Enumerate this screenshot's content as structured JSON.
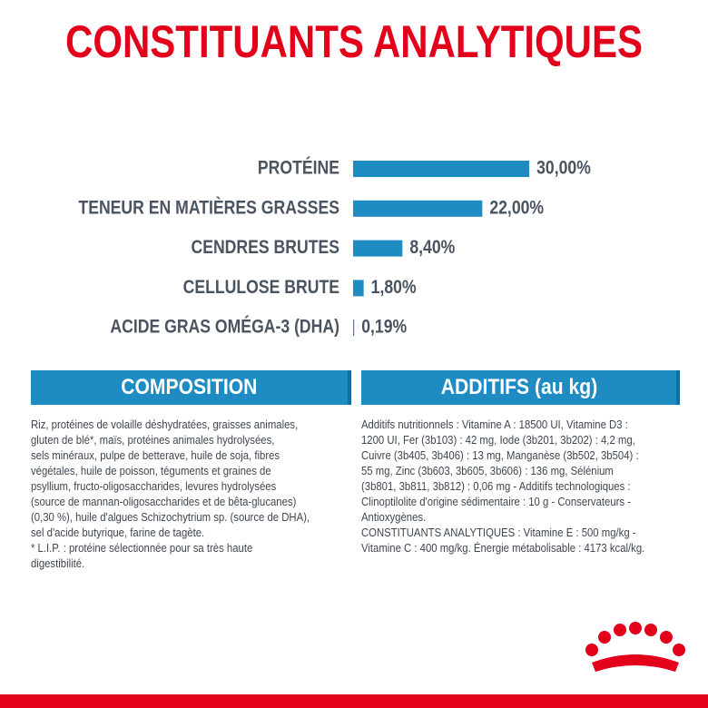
{
  "header": {
    "title": "CONSTITUANTS ANALYTIQUES"
  },
  "chart_data": {
    "type": "bar",
    "orientation": "horizontal",
    "categories": [
      "PROTÉINE",
      "TENEUR EN MATIÈRES GRASSES",
      "CENDRES BRUTES",
      "CELLULOSE BRUTE",
      "ACIDE GRAS OMÉGA-3 (DHA)"
    ],
    "values": [
      30.0,
      22.0,
      8.4,
      1.8,
      0.19
    ],
    "value_labels": [
      "30,00%",
      "22,00%",
      "8,40%",
      "1,80%",
      "0,19%"
    ],
    "color": "#1e8bc3"
  },
  "composition": {
    "title": "COMPOSITION",
    "lines": [
      "Riz, protéines de volaille déshydratées, graisses animales,",
      "gluten de blé*, maïs, protéines animales hydrolysées,",
      "sels minéraux, pulpe de betterave, huile de soja, fibres",
      "végétales, huile de poisson, téguments et graines de",
      "psyllium, fructo-oligosaccharides, levures hydrolysées",
      "(source de mannan-oligosaccharides et de bêta-glucanes)",
      "(0,30 %), huile d'algues Schizochytrium sp. (source de DHA),",
      "sel d'acide butyrique, farine de tagète.",
      "* L.I.P. : protéine sélectionnée pour sa très haute",
      "digestibilité."
    ]
  },
  "additifs": {
    "title": "ADDITIFS (au kg)",
    "lines": [
      "Additifs nutritionnels : Vitamine A : 18500 UI, Vitamine D3 :",
      "1200 UI, Fer (3b103) : 42 mg, Iode (3b201, 3b202) : 4,2 mg,",
      "Cuivre (3b405, 3b406) : 13 mg, Manganèse (3b502, 3b504) :",
      "55 mg, Zinc (3b603, 3b605, 3b606) : 136 mg, Sélénium",
      "(3b801, 3b811, 3b812) : 0,06 mg - Additifs technologiques :",
      "Clinoptilolite d'origine sédimentaire : 10 g - Conservateurs -",
      "Antioxygènes.",
      "CONSTITUANTS ANALYTIQUES : Vitamine E : 500 mg/kg -",
      "Vitamine C : 400 mg/kg. Énergie métabolisable : 4173 kcal/kg."
    ]
  }
}
